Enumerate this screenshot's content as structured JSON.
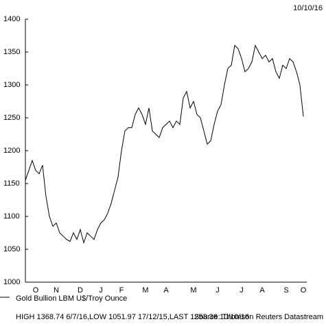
{
  "chart_data": {
    "type": "line",
    "date": "10/10/16",
    "legend_label": "Gold Bullion LBM U$/Troy Ounce",
    "footnote": "HIGH 1368.74 6/7/16,LOW 1051.97 17/12/15,LAST 1253.36 10/10/16",
    "source": "Source: Thomson Reuters Datastream",
    "color": "#000000",
    "ylim": [
      1000,
      1400
    ],
    "yticks": [
      1000,
      1050,
      1100,
      1150,
      1200,
      1250,
      1300,
      1350,
      1400
    ],
    "categories": [
      null,
      null,
      null,
      "O",
      null,
      null,
      null,
      null,
      null,
      "N",
      null,
      null,
      null,
      null,
      null,
      null,
      "D",
      null,
      null,
      null,
      null,
      null,
      "J",
      null,
      null,
      null,
      null,
      null,
      "F",
      null,
      null,
      null,
      null,
      null,
      null,
      "M",
      null,
      null,
      null,
      null,
      null,
      "A",
      null,
      null,
      null,
      null,
      null,
      null,
      null,
      "M",
      null,
      null,
      null,
      null,
      null,
      null,
      "J",
      null,
      null,
      null,
      null,
      null,
      null,
      "J",
      null,
      null,
      null,
      null,
      null,
      "A",
      null,
      null,
      null,
      null,
      null,
      null,
      "S",
      null,
      null,
      null,
      null,
      "O"
    ],
    "values": [
      1155,
      1170,
      1185,
      1170,
      1165,
      1178,
      1130,
      1100,
      1085,
      1090,
      1075,
      1070,
      1065,
      1062,
      1075,
      1065,
      1080,
      1060,
      1075,
      1070,
      1065,
      1080,
      1090,
      1095,
      1105,
      1120,
      1140,
      1160,
      1200,
      1230,
      1235,
      1235,
      1255,
      1265,
      1255,
      1240,
      1265,
      1230,
      1225,
      1220,
      1235,
      1240,
      1245,
      1235,
      1245,
      1240,
      1280,
      1290,
      1265,
      1275,
      1255,
      1250,
      1230,
      1210,
      1215,
      1240,
      1260,
      1270,
      1300,
      1325,
      1330,
      1360,
      1355,
      1340,
      1320,
      1325,
      1335,
      1360,
      1350,
      1340,
      1345,
      1335,
      1340,
      1320,
      1310,
      1330,
      1325,
      1340,
      1335,
      1320,
      1300,
      1252
    ]
  }
}
